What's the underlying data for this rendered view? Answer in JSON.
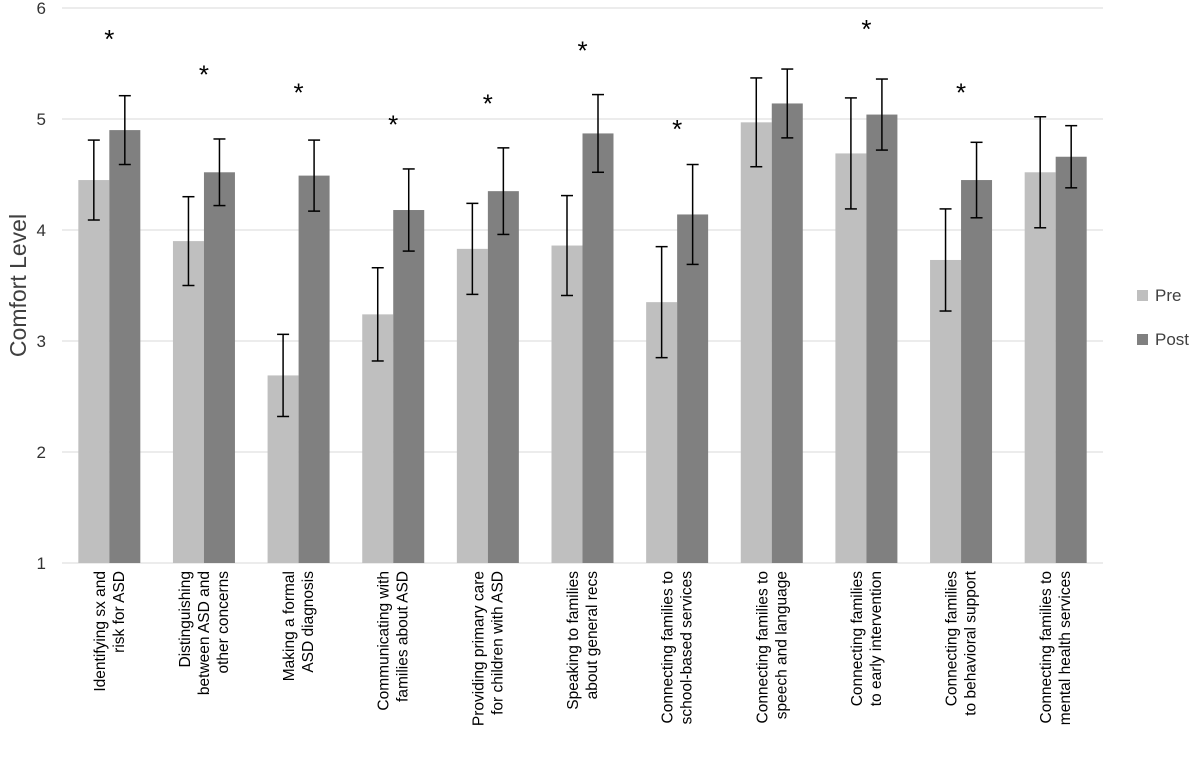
{
  "chart_data": {
    "type": "bar",
    "title": "",
    "xlabel": "",
    "ylabel": "Comfort Level",
    "ylim": [
      1,
      6
    ],
    "yticks": [
      1,
      2,
      3,
      4,
      5,
      6
    ],
    "grid": "horizontal",
    "legend_position": "right",
    "categories": [
      [
        "Identifying sx and",
        "risk for ASD"
      ],
      [
        "Distinguishing",
        "between ASD and",
        "other concerns"
      ],
      [
        "Making a formal",
        "ASD diagnosis"
      ],
      [
        "Communicating with",
        "families about ASD"
      ],
      [
        "Providing primary care",
        "for children with ASD"
      ],
      [
        "Speaking to families",
        "about general recs"
      ],
      [
        "Connecting families to",
        "school-based services"
      ],
      [
        "Connecting families to",
        "speech and language"
      ],
      [
        "Connecting families",
        "to early intervention"
      ],
      [
        "Connecting families",
        "to behavioral support"
      ],
      [
        "Connecting families to",
        "mental health services"
      ]
    ],
    "series": [
      {
        "name": "Pre",
        "color": "#bfbfbf",
        "values": [
          4.45,
          3.9,
          2.69,
          3.24,
          3.83,
          3.86,
          3.35,
          4.97,
          4.69,
          3.73,
          4.52
        ],
        "error": [
          0.36,
          0.4,
          0.37,
          0.42,
          0.41,
          0.45,
          0.5,
          0.4,
          0.5,
          0.46,
          0.5
        ]
      },
      {
        "name": "Post",
        "color": "#808080",
        "values": [
          4.9,
          4.52,
          4.49,
          4.18,
          4.35,
          4.87,
          4.14,
          5.14,
          5.04,
          4.45,
          4.66
        ],
        "error": [
          0.31,
          0.3,
          0.32,
          0.37,
          0.39,
          0.35,
          0.45,
          0.31,
          0.32,
          0.34,
          0.28
        ]
      }
    ],
    "annotations": [
      {
        "category": 0,
        "text": "*",
        "y": 5.8
      },
      {
        "category": 1,
        "text": "*",
        "y": 5.48
      },
      {
        "category": 2,
        "text": "*",
        "y": 5.32
      },
      {
        "category": 3,
        "text": "*",
        "y": 5.03
      },
      {
        "category": 4,
        "text": "*",
        "y": 5.22
      },
      {
        "category": 5,
        "text": "*",
        "y": 5.7
      },
      {
        "category": 6,
        "text": "*",
        "y": 4.99
      },
      {
        "category": 8,
        "text": "*",
        "y": 5.89
      },
      {
        "category": 9,
        "text": "*",
        "y": 5.32
      }
    ]
  }
}
